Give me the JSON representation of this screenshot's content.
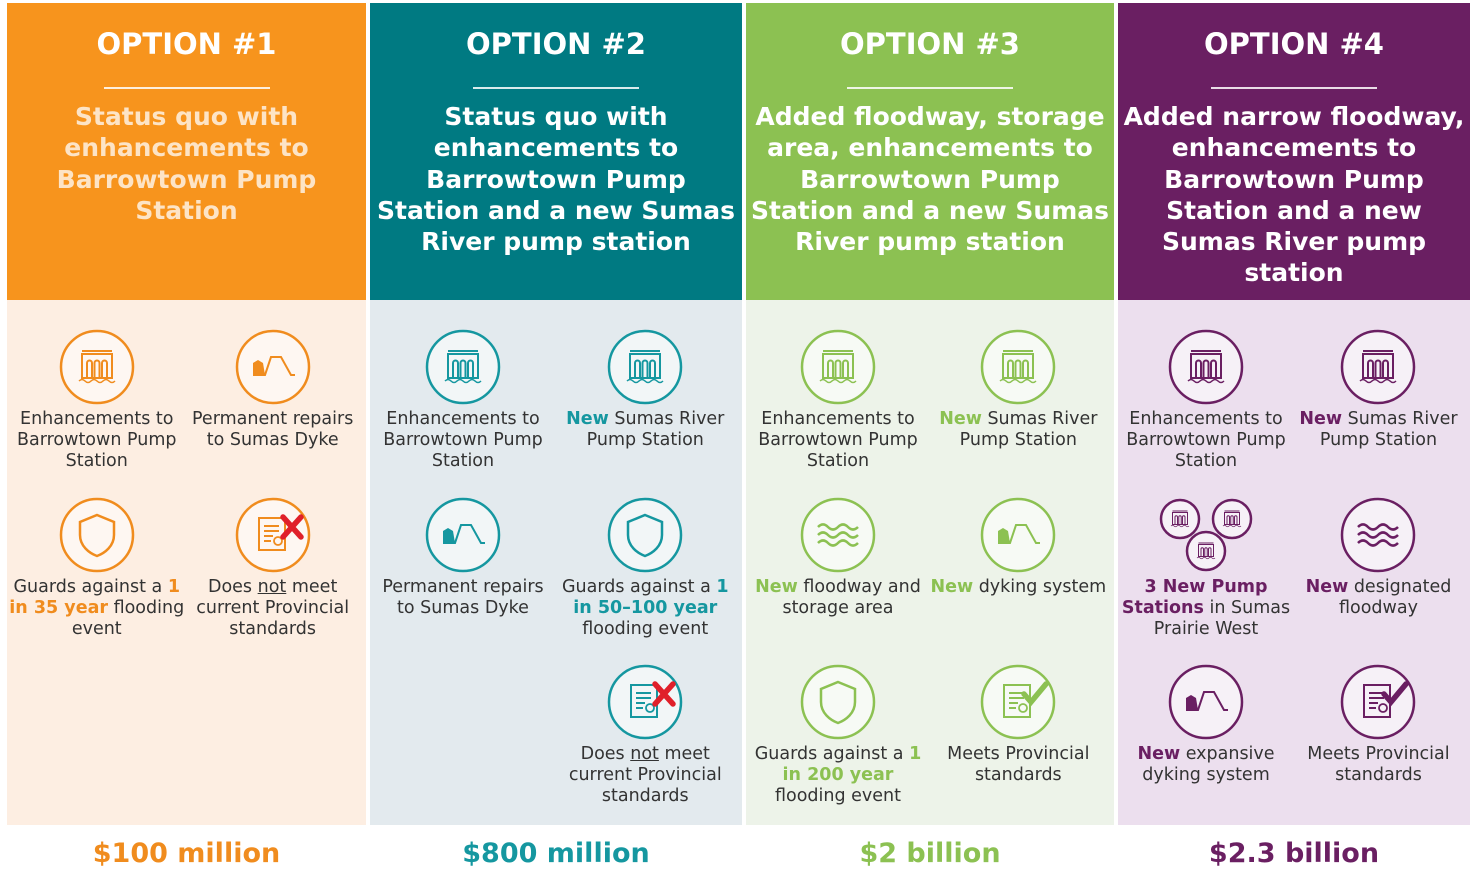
{
  "options": [
    {
      "title": "OPTION #1",
      "description": "Status quo with enhancements to Barrowtown Pump Station",
      "items": [
        {
          "parts": [
            {
              "text": "Enhancements to Barrowtown Pump Station"
            }
          ]
        },
        {
          "parts": [
            {
              "text": "Permanent repairs to Sumas Dyke"
            }
          ]
        },
        {
          "parts": [
            {
              "text": "Guards against a "
            },
            {
              "text": "1 in 35 year",
              "emphasis": true
            },
            {
              "text": " flooding event"
            }
          ]
        },
        {
          "parts": [
            {
              "text": "Does "
            },
            {
              "text": "not",
              "underline": true
            },
            {
              "text": " meet current Provincial standards"
            }
          ]
        }
      ],
      "cost": "$100 million"
    },
    {
      "title": "OPTION #2",
      "description": "Status quo with enhancements to Barrowtown Pump Station and a new Sumas River pump station",
      "items": [
        {
          "parts": [
            {
              "text": "Enhancements to Barrowtown Pump Station"
            }
          ]
        },
        {
          "parts": [
            {
              "text": "New",
              "emphasis": true
            },
            {
              "text": " Sumas River Pump Station"
            }
          ]
        },
        {
          "parts": [
            {
              "text": "Permanent repairs to Sumas Dyke"
            }
          ]
        },
        {
          "parts": [
            {
              "text": "Guards against a "
            },
            {
              "text": "1 in 50–100 year",
              "emphasis": true
            },
            {
              "text": " flooding event"
            }
          ]
        },
        {
          "parts": [
            {
              "text": "Does "
            },
            {
              "text": "not",
              "underline": true
            },
            {
              "text": " meet current Provincial standards"
            }
          ]
        }
      ],
      "cost": "$800 million"
    },
    {
      "title": "OPTION #3",
      "description": "Added floodway, storage area, enhancements to Barrowtown Pump Station and a new Sumas River pump station",
      "items": [
        {
          "parts": [
            {
              "text": "Enhancements to Barrowtown Pump Station"
            }
          ]
        },
        {
          "parts": [
            {
              "text": "New",
              "emphasis": true
            },
            {
              "text": " Sumas River Pump Station"
            }
          ]
        },
        {
          "parts": [
            {
              "text": "New",
              "emphasis": true
            },
            {
              "text": " floodway and storage area"
            }
          ]
        },
        {
          "parts": [
            {
              "text": "New",
              "emphasis": true
            },
            {
              "text": " dyking system"
            }
          ]
        },
        {
          "parts": [
            {
              "text": "Guards against a "
            },
            {
              "text": "1 in 200 year",
              "emphasis": true
            },
            {
              "text": " flooding event"
            }
          ]
        },
        {
          "parts": [
            {
              "text": "Meets Provincial standards"
            }
          ]
        }
      ],
      "cost": "$2 billion"
    },
    {
      "title": "OPTION #4",
      "description": "Added narrow floodway, enhancements to Barrowtown Pump Station and a new Sumas River pump station",
      "items": [
        {
          "parts": [
            {
              "text": "Enhancements to Barrowtown Pump Station"
            }
          ]
        },
        {
          "parts": [
            {
              "text": "New",
              "emphasis": true
            },
            {
              "text": " Sumas River Pump Station"
            }
          ]
        },
        {
          "parts": [
            {
              "text": "3 New Pump Stations",
              "emphasis": true
            },
            {
              "text": " in Sumas Prairie West"
            }
          ]
        },
        {
          "parts": [
            {
              "text": "New",
              "emphasis": true
            },
            {
              "text": " designated floodway"
            }
          ]
        },
        {
          "parts": [
            {
              "text": "New",
              "emphasis": true
            },
            {
              "text": " expansive dyking system"
            }
          ]
        },
        {
          "parts": [
            {
              "text": "Meets Provincial standards"
            }
          ]
        }
      ],
      "cost": "$2.3 billion"
    }
  ]
}
